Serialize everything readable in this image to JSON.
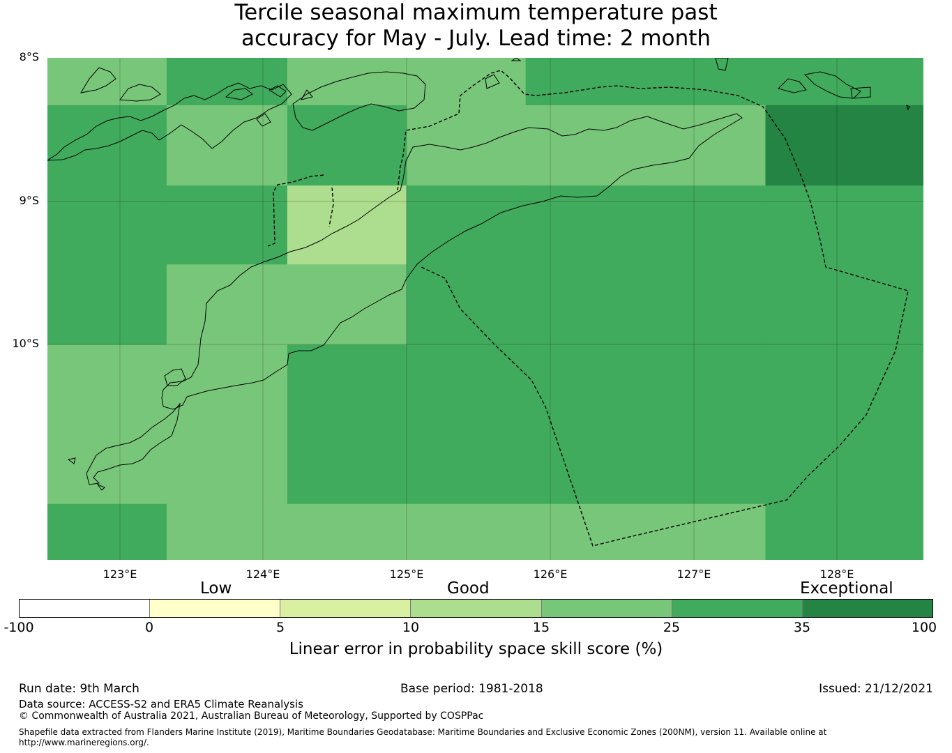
{
  "title": {
    "line1": "Tercile seasonal maximum temperature past",
    "line2": "accuracy for May - July. Lead time: 2 month"
  },
  "map": {
    "lat_labels": [
      "8°S",
      "9°S",
      "10°S"
    ],
    "lon_labels": [
      "123°E",
      "124°E",
      "125°E",
      "126°E",
      "127°E",
      "128°E"
    ],
    "lon_extent": [
      122.5,
      128.6
    ],
    "lat_extent": [
      -8.0,
      -11.5
    ],
    "grid_lon_edges": [
      122.5,
      123.33,
      124.17,
      125.0,
      125.83,
      126.67,
      127.5,
      128.6
    ],
    "grid_lat_edges": [
      -8.0,
      -8.33,
      -8.89,
      -9.44,
      -10.0,
      -11.11,
      -11.5
    ],
    "skill_cells": [
      [
        20,
        30,
        20,
        20,
        30,
        30,
        30
      ],
      [
        30,
        20,
        30,
        20,
        20,
        20,
        40
      ],
      [
        30,
        30,
        12,
        30,
        30,
        30,
        30
      ],
      [
        30,
        20,
        20,
        30,
        30,
        30,
        30
      ],
      [
        20,
        20,
        30,
        30,
        30,
        30,
        30
      ],
      [
        30,
        20,
        20,
        20,
        20,
        20,
        30
      ]
    ]
  },
  "legend": {
    "categories": [
      "Low",
      "Good",
      "Exceptional"
    ],
    "ticks": [
      "-100",
      "0",
      "5",
      "10",
      "15",
      "25",
      "35",
      "100"
    ],
    "colors": [
      "#ffffff",
      "#ffffcc",
      "#d9f0a3",
      "#addd8e",
      "#78c679",
      "#41ab5d",
      "#238443"
    ],
    "label": "Linear error in probability space skill score (%)"
  },
  "footer": {
    "run_date": "Run date: 9th March",
    "base_period": "Base period: 1981-2018",
    "issued": "Issued: 21/12/2021",
    "data_source": "Data source: ACCESS-S2 and ERA5 Climate Reanalysis",
    "copyright": "© Commonwealth of Australia 2021, Australian Bureau of Meteorology, Supported by COSPPac",
    "shapefile_line1": "Shapefile data extracted from Flanders Marine Institute (2019), Maritime Boundaries Geodatabase: Maritime Boundaries and Exclusive Economic Zones (200NM), version 11. Available online at",
    "shapefile_line2": "http://www.marineregions.org/."
  }
}
